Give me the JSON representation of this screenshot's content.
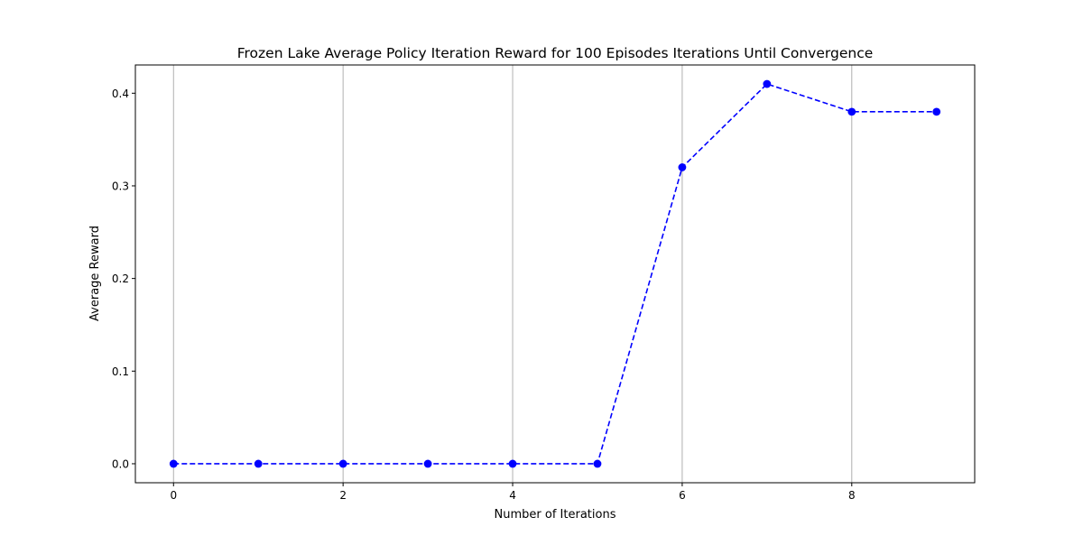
{
  "chart_data": {
    "type": "line",
    "title": "Frozen Lake Average Policy Iteration Reward for 100 Episodes Iterations Until Convergence",
    "xlabel": "Number of Iterations",
    "ylabel": "Average Reward",
    "x": [
      0,
      1,
      2,
      3,
      4,
      5,
      6,
      7,
      8,
      9
    ],
    "series": [
      {
        "values": [
          0.0,
          0.0,
          0.0,
          0.0,
          0.0,
          0.0,
          0.32,
          0.41,
          0.38,
          0.38
        ],
        "color": "#0000ff",
        "line_style": "dashed",
        "marker": "circle"
      }
    ],
    "xlim": [
      -0.45,
      9.45
    ],
    "ylim": [
      -0.0205,
      0.4305
    ],
    "xticks": [
      0,
      2,
      4,
      6,
      8
    ],
    "xtick_labels": [
      "0",
      "2",
      "4",
      "6",
      "8"
    ],
    "yticks": [
      0.0,
      0.1,
      0.2,
      0.3,
      0.4
    ],
    "ytick_labels": [
      "0.0",
      "0.1",
      "0.2",
      "0.3",
      "0.4"
    ],
    "grid": "x-axis only",
    "grid_color": "#b0b0b0",
    "legend": "none"
  }
}
